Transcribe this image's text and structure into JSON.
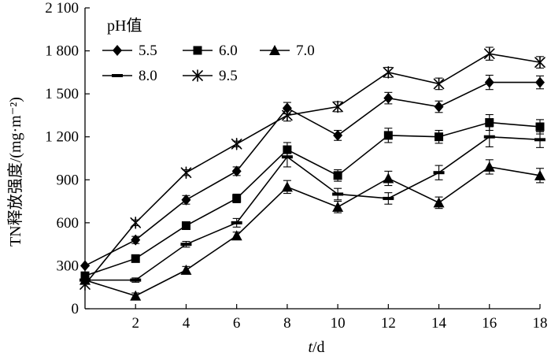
{
  "chart_data": {
    "type": "line",
    "xlabel_var": "t",
    "xlabel_unit": "/d",
    "ylabel": "TN释放强度/(mg·m⁻²)",
    "x": [
      0,
      2,
      4,
      6,
      8,
      10,
      12,
      14,
      16,
      18
    ],
    "xticks": [
      2,
      4,
      6,
      8,
      10,
      12,
      14,
      16,
      18
    ],
    "xlim": [
      0,
      18
    ],
    "ylim": [
      0,
      2100
    ],
    "yticks": [
      0,
      300,
      600,
      900,
      1200,
      1500,
      1800,
      2100
    ],
    "ytick_labels": [
      "0",
      "300",
      "600",
      "900",
      "1 200",
      "1 500",
      "1 800",
      "2 100"
    ],
    "legend_title": "pH值",
    "legend_position": "top-left",
    "grid": false,
    "series": [
      {
        "name": "5.5",
        "marker": "diamond",
        "values": [
          300,
          480,
          760,
          960,
          1400,
          1210,
          1470,
          1410,
          1580,
          1580
        ],
        "errors": [
          20,
          25,
          30,
          30,
          40,
          35,
          40,
          40,
          50,
          45
        ]
      },
      {
        "name": "6.0",
        "marker": "square",
        "values": [
          230,
          350,
          580,
          770,
          1110,
          930,
          1210,
          1200,
          1300,
          1270
        ],
        "errors": [
          20,
          20,
          25,
          30,
          50,
          40,
          50,
          45,
          55,
          50
        ]
      },
      {
        "name": "7.0",
        "marker": "triangle",
        "values": [
          200,
          90,
          270,
          510,
          850,
          710,
          910,
          740,
          990,
          930
        ],
        "errors": [
          15,
          20,
          25,
          25,
          45,
          40,
          50,
          40,
          50,
          50
        ]
      },
      {
        "name": "8.0",
        "marker": "dash",
        "values": [
          200,
          200,
          450,
          600,
          1060,
          800,
          770,
          950,
          1200,
          1180
        ],
        "errors": [
          15,
          15,
          20,
          30,
          70,
          40,
          40,
          50,
          70,
          55
        ]
      },
      {
        "name": "9.5",
        "marker": "asterisk",
        "values": [
          170,
          600,
          950,
          1150,
          1350,
          1410,
          1650,
          1570,
          1780,
          1720
        ],
        "errors": [
          15,
          20,
          20,
          20,
          40,
          35,
          35,
          40,
          45,
          40
        ]
      }
    ]
  }
}
